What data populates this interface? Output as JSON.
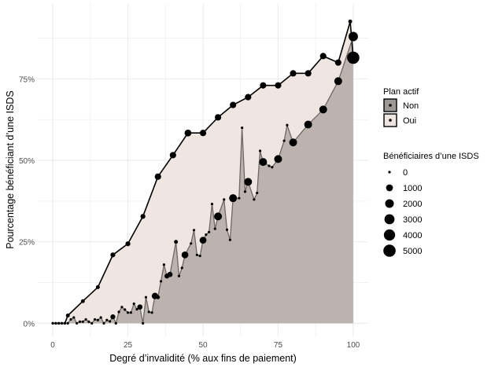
{
  "chart_data": {
    "type": "area",
    "title": "",
    "xlabel": "Degré d’invalidité (% aux fins de paiement)",
    "ylabel": "Pourcentage bénéficiant d’une ISDS",
    "xlim": [
      -5,
      105
    ],
    "ylim": [
      -4,
      98
    ],
    "x_ticks": [
      0,
      25,
      50,
      75,
      100
    ],
    "x_tick_labels": [
      "0",
      "25",
      "50",
      "75",
      "100"
    ],
    "y_ticks": [
      0,
      25,
      50,
      75
    ],
    "y_tick_labels": [
      "0%",
      "25%",
      "50%",
      "75%"
    ],
    "grid": true,
    "colors": {
      "Non": "#bcb3ae",
      "Oui": "#efe6e1",
      "line_Non": "#6e6764",
      "line_Oui": "#000000",
      "grid": "#ebebeb",
      "text": "#4d4d4d"
    },
    "series": [
      {
        "name": "Oui",
        "points": [
          [
            0,
            0,
            0
          ],
          [
            1,
            0,
            0
          ],
          [
            2,
            0,
            0
          ],
          [
            3,
            0,
            0
          ],
          [
            4,
            0,
            0
          ],
          [
            5,
            2.4,
            100
          ],
          [
            10,
            6.8,
            100
          ],
          [
            15,
            11.1,
            100
          ],
          [
            20,
            21,
            300
          ],
          [
            25,
            24.4,
            300
          ],
          [
            30,
            32.8,
            300
          ],
          [
            35,
            45,
            800
          ],
          [
            40,
            51.6,
            800
          ],
          [
            45,
            58.4,
            1000
          ],
          [
            50,
            58.4,
            800
          ],
          [
            55,
            63.2,
            800
          ],
          [
            60,
            67,
            800
          ],
          [
            65,
            69.4,
            800
          ],
          [
            70,
            73,
            800
          ],
          [
            75,
            73,
            800
          ],
          [
            80,
            76.7,
            800
          ],
          [
            85,
            76.7,
            800
          ],
          [
            90,
            82,
            800
          ],
          [
            95,
            80,
            800
          ],
          [
            99,
            92.6,
            100
          ],
          [
            100,
            81.5,
            5000
          ]
        ]
      },
      {
        "name": "Non",
        "points": [
          [
            0,
            0,
            0
          ],
          [
            1,
            0,
            0
          ],
          [
            2,
            0,
            0
          ],
          [
            3,
            0,
            0
          ],
          [
            4,
            0,
            0
          ],
          [
            5,
            0,
            0
          ],
          [
            6,
            1.2,
            0
          ],
          [
            7,
            1.8,
            0
          ],
          [
            8,
            0,
            0
          ],
          [
            9,
            0.5,
            0
          ],
          [
            10,
            0.5,
            0
          ],
          [
            11,
            1.2,
            0
          ],
          [
            12,
            0.5,
            0
          ],
          [
            13,
            0,
            0
          ],
          [
            14,
            1.2,
            0
          ],
          [
            15,
            1,
            0
          ],
          [
            16,
            1.8,
            0
          ],
          [
            17,
            0,
            0
          ],
          [
            18,
            1,
            0
          ],
          [
            19,
            0.6,
            0
          ],
          [
            20,
            2,
            300
          ],
          [
            21,
            0,
            0
          ],
          [
            22,
            3.5,
            0
          ],
          [
            23,
            5,
            0
          ],
          [
            24,
            4.2,
            0
          ],
          [
            25,
            3.3,
            0
          ],
          [
            26,
            3.3,
            0
          ],
          [
            27,
            6,
            0
          ],
          [
            28,
            4.3,
            0
          ],
          [
            29,
            5,
            400
          ],
          [
            30,
            0,
            0
          ],
          [
            31,
            8,
            0
          ],
          [
            32,
            3.5,
            0
          ],
          [
            33,
            3.3,
            0
          ],
          [
            34,
            8.4,
            800
          ],
          [
            35,
            8,
            100
          ],
          [
            36,
            12.9,
            0
          ],
          [
            37,
            18,
            0
          ],
          [
            38,
            14.5,
            300
          ],
          [
            39,
            15,
            400
          ],
          [
            41,
            25,
            100
          ],
          [
            42,
            14.5,
            0
          ],
          [
            43,
            17,
            0
          ],
          [
            44,
            21,
            1000
          ],
          [
            46,
            24.5,
            0
          ],
          [
            47,
            28.6,
            0
          ],
          [
            48,
            21,
            0
          ],
          [
            49,
            20.7,
            0
          ],
          [
            50,
            25.5,
            1000
          ],
          [
            51,
            27.2,
            0
          ],
          [
            52,
            28,
            0
          ],
          [
            53,
            36.6,
            0
          ],
          [
            54,
            29,
            0
          ],
          [
            55,
            32.8,
            1500
          ],
          [
            57,
            38,
            0
          ],
          [
            58,
            28.7,
            0
          ],
          [
            59,
            25.6,
            0
          ],
          [
            60,
            38.4,
            1500
          ],
          [
            62,
            38.4,
            0
          ],
          [
            63,
            60,
            0
          ],
          [
            64,
            40.4,
            0
          ],
          [
            65,
            43.4,
            1500
          ],
          [
            67,
            38,
            0
          ],
          [
            68,
            40,
            0
          ],
          [
            69,
            52.9,
            0
          ],
          [
            70,
            49.5,
            1500
          ],
          [
            72,
            48.3,
            0
          ],
          [
            73,
            47.9,
            0
          ],
          [
            75,
            50.4,
            1500
          ],
          [
            77,
            56,
            0
          ],
          [
            78,
            60.8,
            0
          ],
          [
            80,
            55.5,
            1500
          ],
          [
            85,
            61,
            1500
          ],
          [
            90,
            65.6,
            1500
          ],
          [
            95,
            74.3,
            1500
          ],
          [
            100,
            88,
            2500
          ]
        ]
      }
    ]
  },
  "legend": {
    "fill_title": "Plan actif",
    "fill_items": [
      {
        "label": "Non",
        "color": "#9e9995"
      },
      {
        "label": "Oui",
        "color": "#efe6e1"
      }
    ],
    "size_title": "Bénéficiaires d’une ISDS",
    "size_items": [
      {
        "label": "0",
        "value": 0
      },
      {
        "label": "1000",
        "value": 1000
      },
      {
        "label": "2000",
        "value": 2000
      },
      {
        "label": "3000",
        "value": 3000
      },
      {
        "label": "4000",
        "value": 4000
      },
      {
        "label": "5000",
        "value": 5000
      }
    ]
  }
}
